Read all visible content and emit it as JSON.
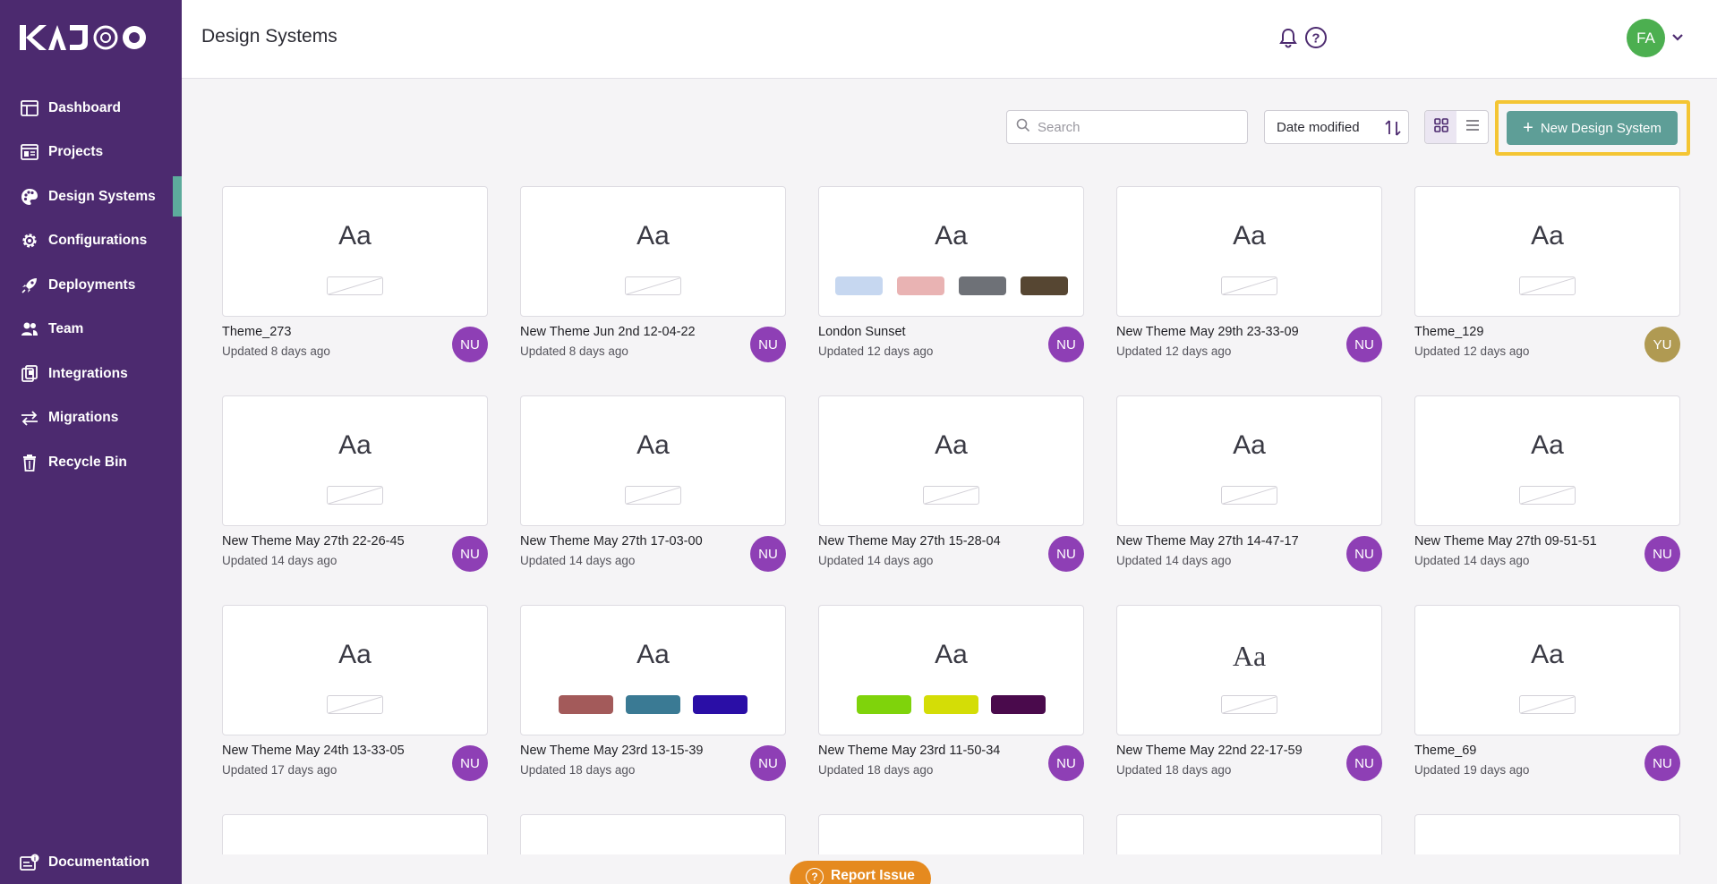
{
  "app": {
    "logo_text": "KAJOO"
  },
  "sidebar": {
    "items": [
      {
        "label": "Dashboard",
        "icon": "dashboard-icon"
      },
      {
        "label": "Projects",
        "icon": "projects-icon"
      },
      {
        "label": "Design Systems",
        "icon": "palette-icon",
        "active": true
      },
      {
        "label": "Configurations",
        "icon": "gear-icon"
      },
      {
        "label": "Deployments",
        "icon": "rocket-icon"
      },
      {
        "label": "Team",
        "icon": "team-icon"
      },
      {
        "label": "Integrations",
        "icon": "integrations-icon"
      },
      {
        "label": "Migrations",
        "icon": "migrations-icon"
      },
      {
        "label": "Recycle Bin",
        "icon": "trash-icon"
      }
    ],
    "documentation": {
      "label": "Documentation",
      "icon": "documentation-icon"
    }
  },
  "header": {
    "title": "Design Systems",
    "user_initials": "FA",
    "user_color": "#4caf50"
  },
  "toolbar": {
    "search_placeholder": "Search",
    "search_value": "",
    "sort_label": "Date modified",
    "view_mode": "grid",
    "new_button_label": "New Design System"
  },
  "cards": [
    {
      "name": "Theme_273",
      "updated": "Updated 8 days ago",
      "owner": "NU",
      "owner_color": "#8e3fb5",
      "swatches": []
    },
    {
      "name": "New Theme Jun 2nd 12-04-22",
      "updated": "Updated 8 days ago",
      "owner": "NU",
      "owner_color": "#8e3fb5",
      "swatches": []
    },
    {
      "name": "London Sunset",
      "updated": "Updated 12 days ago",
      "owner": "NU",
      "owner_color": "#8e3fb5",
      "swatches": [
        "#c6d7f0",
        "#e9b3b3",
        "#6e7177",
        "#564632"
      ]
    },
    {
      "name": "New Theme May 29th 23-33-09",
      "updated": "Updated 12 days ago",
      "owner": "NU",
      "owner_color": "#8e3fb5",
      "swatches": []
    },
    {
      "name": "Theme_129",
      "updated": "Updated 12 days ago",
      "owner": "YU",
      "owner_color": "#b09a52",
      "swatches": []
    },
    {
      "name": "New Theme May 27th 22-26-45",
      "updated": "Updated 14 days ago",
      "owner": "NU",
      "owner_color": "#8e3fb5",
      "swatches": []
    },
    {
      "name": "New Theme May 27th 17-03-00",
      "updated": "Updated 14 days ago",
      "owner": "NU",
      "owner_color": "#8e3fb5",
      "swatches": []
    },
    {
      "name": "New Theme May 27th 15-28-04",
      "updated": "Updated 14 days ago",
      "owner": "NU",
      "owner_color": "#8e3fb5",
      "swatches": []
    },
    {
      "name": "New Theme May 27th 14-47-17",
      "updated": "Updated 14 days ago",
      "owner": "NU",
      "owner_color": "#8e3fb5",
      "swatches": []
    },
    {
      "name": "New Theme May 27th 09-51-51",
      "updated": "Updated 14 days ago",
      "owner": "NU",
      "owner_color": "#8e3fb5",
      "swatches": []
    },
    {
      "name": "New Theme May 24th 13-33-05",
      "updated": "Updated 17 days ago",
      "owner": "NU",
      "owner_color": "#8e3fb5",
      "swatches": []
    },
    {
      "name": "New Theme May 23rd 13-15-39",
      "updated": "Updated 18 days ago",
      "owner": "NU",
      "owner_color": "#8e3fb5",
      "swatches": [
        "#a35a5a",
        "#3a7a94",
        "#2a0ea6"
      ]
    },
    {
      "name": "New Theme May 23rd 11-50-34",
      "updated": "Updated 18 days ago",
      "owner": "NU",
      "owner_color": "#8e3fb5",
      "swatches": [
        "#7fd30b",
        "#d4dd06",
        "#4a0a4c"
      ]
    },
    {
      "name": "New Theme May 22nd 22-17-59",
      "updated": "Updated 18 days ago",
      "owner": "NU",
      "owner_color": "#8e3fb5",
      "swatches": [],
      "serif": true
    },
    {
      "name": "Theme_69",
      "updated": "Updated 19 days ago",
      "owner": "NU",
      "owner_color": "#8e3fb5",
      "swatches": []
    }
  ],
  "card_preview_text": "Aa",
  "report_issue": {
    "label": "Report Issue"
  }
}
